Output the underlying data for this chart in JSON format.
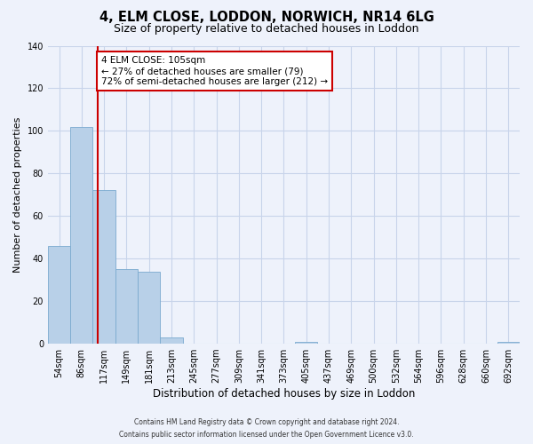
{
  "title": "4, ELM CLOSE, LODDON, NORWICH, NR14 6LG",
  "subtitle": "Size of property relative to detached houses in Loddon",
  "xlabel": "Distribution of detached houses by size in Loddon",
  "ylabel": "Number of detached properties",
  "bar_labels": [
    "54sqm",
    "86sqm",
    "117sqm",
    "149sqm",
    "181sqm",
    "213sqm",
    "245sqm",
    "277sqm",
    "309sqm",
    "341sqm",
    "373sqm",
    "405sqm",
    "437sqm",
    "469sqm",
    "500sqm",
    "532sqm",
    "564sqm",
    "596sqm",
    "628sqm",
    "660sqm",
    "692sqm"
  ],
  "bar_values": [
    46,
    102,
    72,
    35,
    34,
    3,
    0,
    0,
    0,
    0,
    0,
    1,
    0,
    0,
    0,
    0,
    0,
    0,
    0,
    0,
    1
  ],
  "bar_color": "#b8d0e8",
  "bar_edge_color": "#7aaacf",
  "vline_color": "#cc0000",
  "vline_x_index": 1.72,
  "ylim": [
    0,
    140
  ],
  "yticks": [
    0,
    20,
    40,
    60,
    80,
    100,
    120,
    140
  ],
  "annotation_title": "4 ELM CLOSE: 105sqm",
  "annotation_line1": "← 27% of detached houses are smaller (79)",
  "annotation_line2": "72% of semi-detached houses are larger (212) →",
  "annotation_box_facecolor": "#ffffff",
  "annotation_box_edgecolor": "#cc0000",
  "footer_line1": "Contains HM Land Registry data © Crown copyright and database right 2024.",
  "footer_line2": "Contains public sector information licensed under the Open Government Licence v3.0.",
  "background_color": "#eef2fb",
  "grid_color": "#c8d4ea",
  "title_fontsize": 10.5,
  "subtitle_fontsize": 9,
  "tick_fontsize": 7,
  "ylabel_fontsize": 8,
  "xlabel_fontsize": 8.5,
  "annotation_fontsize": 7.5,
  "footer_fontsize": 5.5
}
